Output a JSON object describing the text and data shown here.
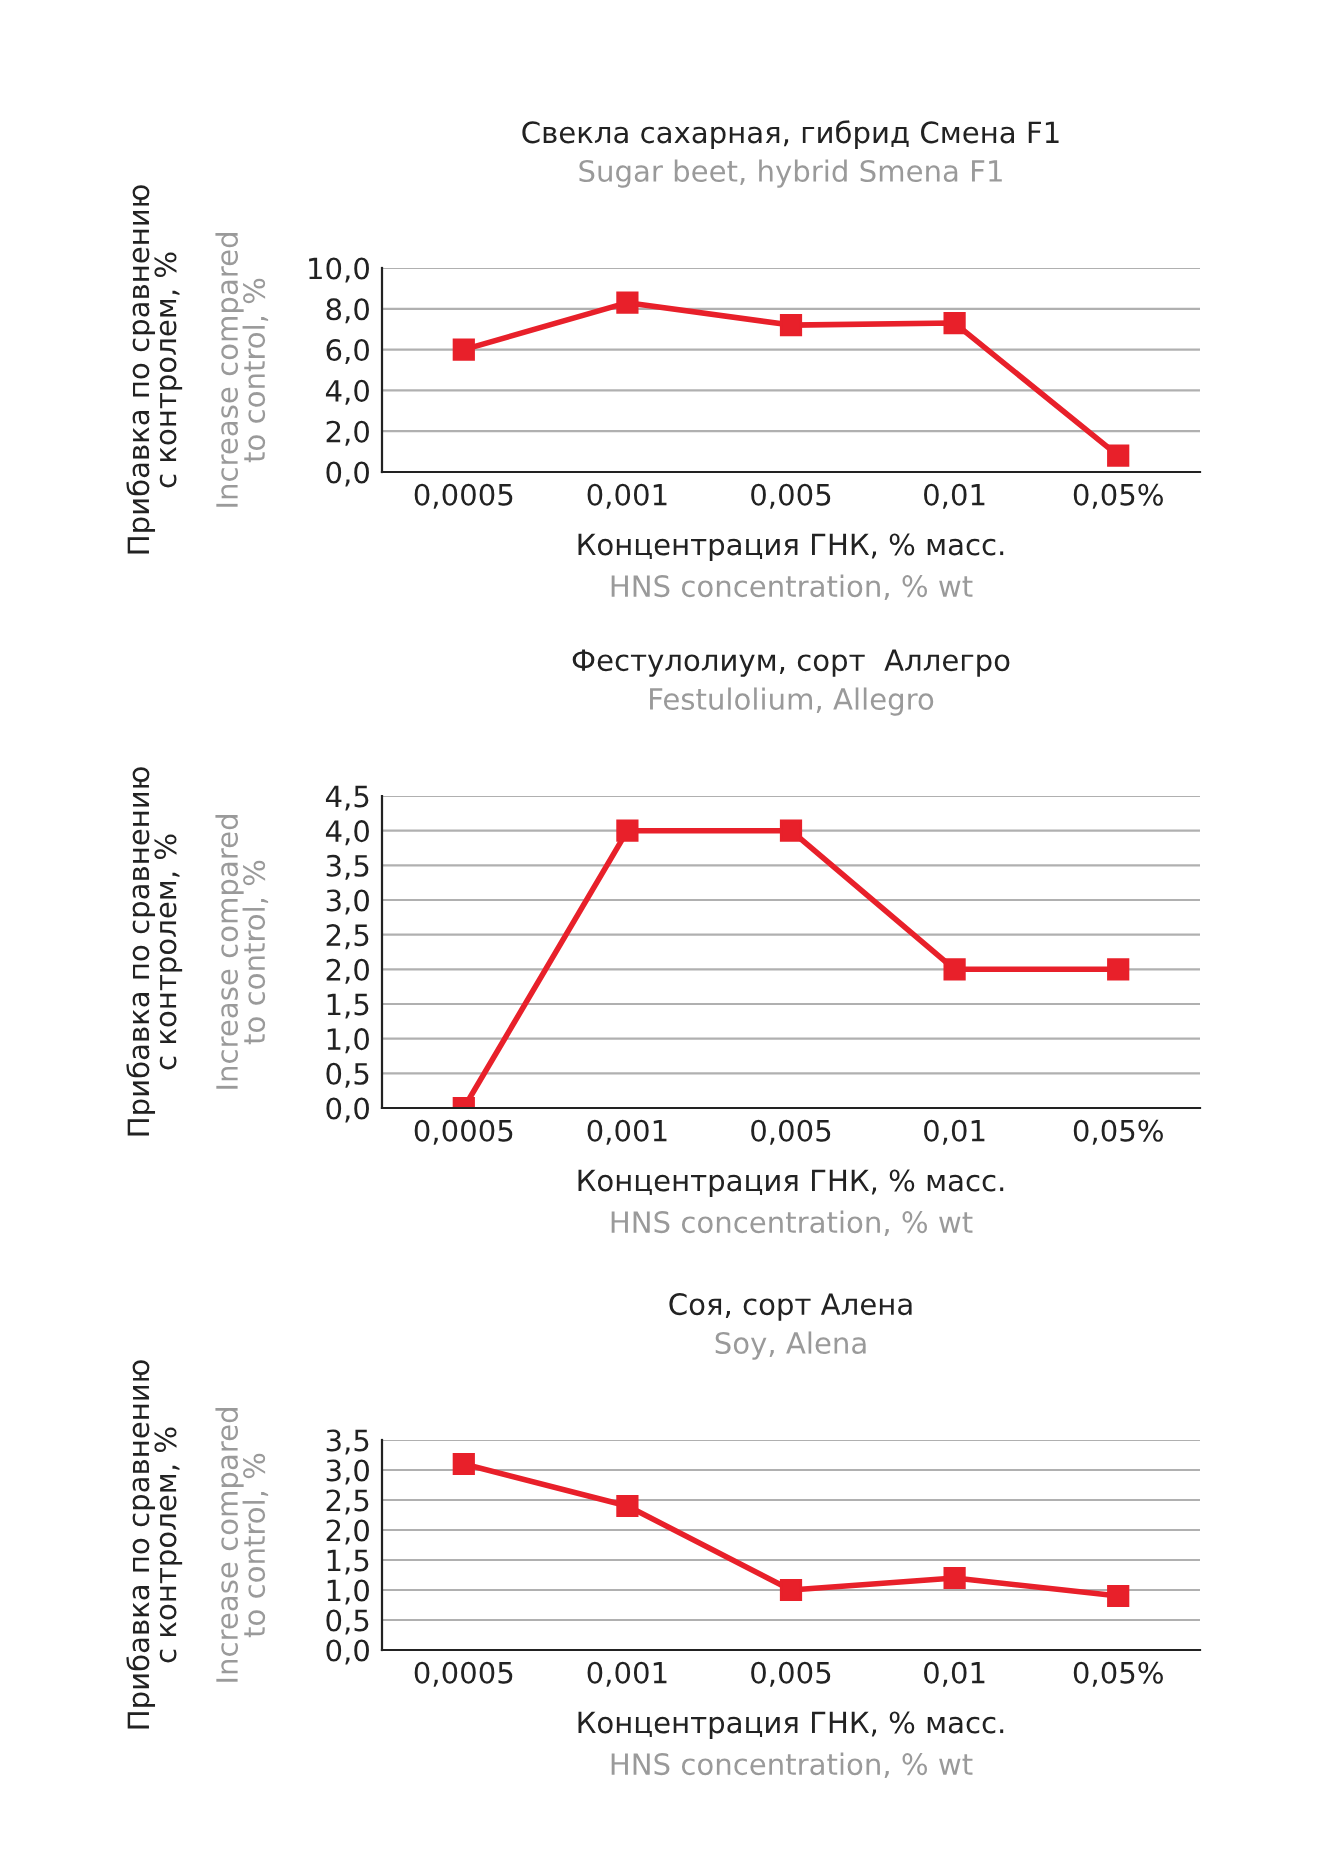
{
  "chart_data": [
    {
      "type": "line",
      "title": "Свекла сахарная, гибрид Смена F1",
      "subtitle": "Sugar beet, hybrid Smena F1",
      "xlabel": "Концентрация ГНК, % масс.",
      "ylabel": "Прибавка по сравнению\nс контролем, %",
      "annotations": [
        "Increase compared\nto control, %",
        "HNS concentration, % wt"
      ],
      "categories": [
        "0,0005",
        "0,001",
        "0,005",
        "0,01",
        "0,05%"
      ],
      "series": [
        {
          "color": "#e8202a",
          "values": [
            6.0,
            8.3,
            7.2,
            7.3,
            0.8
          ]
        }
      ],
      "ylim": [
        0,
        10
      ],
      "yticks": [
        {
          "value": 0,
          "label": "0,0"
        },
        {
          "value": 2,
          "label": "2,0"
        },
        {
          "value": 4,
          "label": "4,0"
        },
        {
          "value": 6,
          "label": "6,0"
        },
        {
          "value": 8,
          "label": "8,0"
        },
        {
          "value": 10,
          "label": "10,0"
        }
      ],
      "grid": "y",
      "marker": "square",
      "line_style": "solid"
    },
    {
      "type": "line",
      "title": "Фестулолиум, сорт  Аллегро",
      "subtitle": "Festulolium, Allegro",
      "xlabel": "Концентрация ГНК, % масс.",
      "ylabel": "Прибавка по сравнению\nс контролем, %",
      "annotations": [
        "Increase compared\nto control, %",
        "HNS concentration, % wt"
      ],
      "categories": [
        "0,0005",
        "0,001",
        "0,005",
        "0,01",
        "0,05%"
      ],
      "series": [
        {
          "color": "#e8202a",
          "values": [
            0.0,
            4.0,
            4.0,
            2.0,
            2.0
          ]
        }
      ],
      "ylim": [
        0,
        4.5
      ],
      "yticks": [
        {
          "value": 0,
          "label": "0,0"
        },
        {
          "value": 0.5,
          "label": "0,5"
        },
        {
          "value": 1,
          "label": "1,0"
        },
        {
          "value": 1.5,
          "label": "1,5"
        },
        {
          "value": 2,
          "label": "2,0"
        },
        {
          "value": 2.5,
          "label": "2,5"
        },
        {
          "value": 3,
          "label": "3,0"
        },
        {
          "value": 3.5,
          "label": "3,5"
        },
        {
          "value": 4,
          "label": "4,0"
        },
        {
          "value": 4.5,
          "label": "4,5"
        }
      ],
      "grid": "y",
      "marker": "square",
      "line_style": "solid"
    },
    {
      "type": "line",
      "title": "Соя, сорт Алена",
      "subtitle": "Soy, Alena",
      "xlabel": "Концентрация ГНК, % масс.",
      "ylabel": "Прибавка по сравнению\nс контролем, %",
      "annotations": [
        "Increase compared\nto control, %",
        "HNS concentration, % wt"
      ],
      "categories": [
        "0,0005",
        "0,001",
        "0,005",
        "0,01",
        "0,05%"
      ],
      "series": [
        {
          "color": "#e8202a",
          "values": [
            3.1,
            2.4,
            1.0,
            1.2,
            0.9
          ]
        }
      ],
      "ylim": [
        0,
        3.5
      ],
      "yticks": [
        {
          "value": 0,
          "label": "0,0"
        },
        {
          "value": 0.5,
          "label": "0,5"
        },
        {
          "value": 1,
          "label": "1,0"
        },
        {
          "value": 1.5,
          "label": "1,5"
        },
        {
          "value": 2,
          "label": "2,0"
        },
        {
          "value": 2.5,
          "label": "2,5"
        },
        {
          "value": 3,
          "label": "3,0"
        },
        {
          "value": 3.5,
          "label": "3,5"
        }
      ],
      "grid": "y",
      "marker": "square",
      "line_style": "solid"
    }
  ]
}
